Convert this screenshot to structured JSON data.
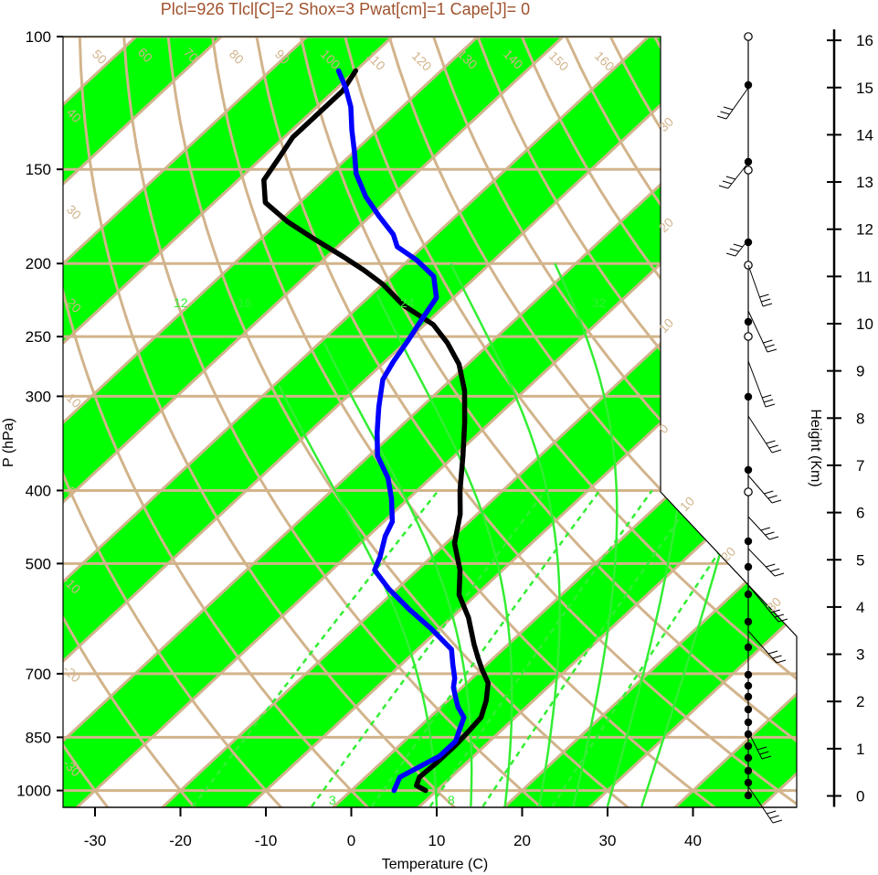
{
  "chart_data": {
    "type": "line",
    "title": "Plcl=926 Tlcl[C]=2 Shox=3 Pwat[cm]=1 Cape[J]= 0",
    "xlabel": "Temperature (C)",
    "ylabel": "P (hPa)",
    "right_label": "Height (Km)",
    "x_ticks": [
      "-30",
      "-20",
      "-10",
      "0",
      "10",
      "20",
      "30",
      "40"
    ],
    "p_ticks": [
      "100",
      "150",
      "200",
      "250",
      "300",
      "400",
      "500",
      "700",
      "850",
      "1000"
    ],
    "height_ticks": [
      "0",
      "1",
      "2",
      "3",
      "4",
      "5",
      "6",
      "7",
      "8",
      "9",
      "10",
      "11",
      "12",
      "13",
      "14",
      "15",
      "16"
    ],
    "xlim": [
      -34,
      50
    ],
    "plim": [
      1050,
      100
    ],
    "skew_labels": [
      "-30",
      "-20",
      "-10",
      "0",
      "10",
      "20",
      "30"
    ],
    "dry_adiabat_labels": [
      "-30",
      "-20",
      "-10",
      "0",
      "10",
      "20",
      "30",
      "40",
      "50",
      "60",
      "70",
      "80",
      "90",
      "100",
      "110",
      "120",
      "130",
      "140",
      "150",
      "160"
    ],
    "moist_adiabat_labels": [
      "12",
      "16",
      "24",
      "32"
    ],
    "mixing_ratio_labels": [
      "3",
      "8"
    ],
    "series": [
      {
        "name": "",
        "color": "#000000",
        "points": [
          [
            8.7,
            1000
          ],
          [
            7,
            985
          ],
          [
            6.3,
            960
          ],
          [
            6.5,
            920
          ],
          [
            6.5,
            870
          ],
          [
            6.3,
            835
          ],
          [
            6,
            800
          ],
          [
            4.5,
            760
          ],
          [
            2.5,
            720
          ],
          [
            0,
            690
          ],
          [
            -2,
            665
          ],
          [
            -4,
            640
          ],
          [
            -8,
            590
          ],
          [
            -12,
            550
          ],
          [
            -15,
            510
          ],
          [
            -19,
            470
          ],
          [
            -22,
            430
          ],
          [
            -25,
            400
          ],
          [
            -29,
            360
          ],
          [
            -33,
            325
          ],
          [
            -37,
            295
          ],
          [
            -41,
            272
          ],
          [
            -45,
            255
          ],
          [
            -49,
            241
          ],
          [
            -55,
            227
          ],
          [
            -60,
            213
          ],
          [
            -64,
            204
          ],
          [
            -68,
            196
          ],
          [
            -74,
            185
          ],
          [
            -79,
            176
          ],
          [
            -84,
            166
          ],
          [
            -87,
            155
          ],
          [
            -88,
            145
          ],
          [
            -89,
            136
          ],
          [
            -89,
            126
          ],
          [
            -89,
            118
          ],
          [
            -90,
            111
          ]
        ]
      },
      {
        "name": "",
        "color": "#0000ff",
        "points": [
          [
            5,
            1000
          ],
          [
            4.5,
            980
          ],
          [
            4,
            960
          ],
          [
            5,
            930
          ],
          [
            6,
            900
          ],
          [
            6,
            860
          ],
          [
            5,
            830
          ],
          [
            4,
            800
          ],
          [
            2,
            775
          ],
          [
            1,
            760
          ],
          [
            -1,
            730
          ],
          [
            -2,
            710
          ],
          [
            -4,
            680
          ],
          [
            -6,
            650
          ],
          [
            -11,
            610
          ],
          [
            -16,
            575
          ],
          [
            -21,
            540
          ],
          [
            -25,
            510
          ],
          [
            -26,
            490
          ],
          [
            -28,
            460
          ],
          [
            -29,
            440
          ],
          [
            -32,
            410
          ],
          [
            -35,
            385
          ],
          [
            -39,
            360
          ],
          [
            -42,
            335
          ],
          [
            -45,
            310
          ],
          [
            -48,
            285
          ],
          [
            -49,
            270
          ],
          [
            -50,
            252
          ],
          [
            -51,
            237
          ],
          [
            -52,
            222
          ],
          [
            -55,
            208
          ],
          [
            -59,
            198
          ],
          [
            -63,
            190
          ],
          [
            -65,
            183
          ],
          [
            -69,
            173
          ],
          [
            -73,
            163
          ],
          [
            -77,
            152
          ],
          [
            -80,
            142
          ],
          [
            -83,
            133
          ],
          [
            -86,
            124
          ],
          [
            -89,
            117
          ],
          [
            -92,
            111
          ]
        ]
      }
    ],
    "wind_barbs_present": true,
    "grid": true
  }
}
